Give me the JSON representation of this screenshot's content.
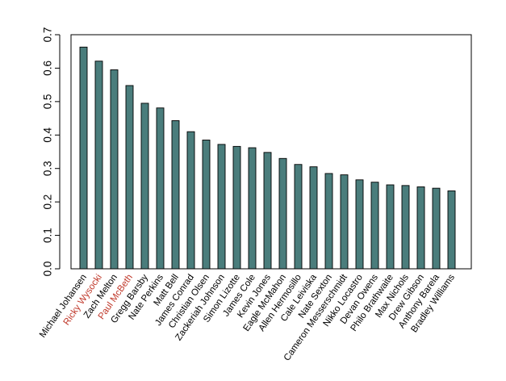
{
  "chart_data": {
    "type": "bar",
    "title": "",
    "xlabel": "",
    "ylabel": "",
    "ylim": [
      0,
      0.7
    ],
    "yticks": [
      "0.0",
      "0.1",
      "0.2",
      "0.3",
      "0.4",
      "0.5",
      "0.6",
      "0.7"
    ],
    "grid": false,
    "legend": "none",
    "bar_color": "#4a7d7c",
    "highlight_label_color": "#c0392b",
    "default_label_color": "#000000",
    "categories": [
      "Michael Johansen",
      "Ricky Wysocki",
      "Zach Melton",
      "Paul McBeth",
      "Gregg Barsby",
      "Nate Perkins",
      "Matt Bell",
      "James Conrad",
      "Christian Olsen",
      "Zackeriah Johnson",
      "Simon Lizotte",
      "James Cole",
      "Kevin Jones",
      "Eagle McMahon",
      "Allen Hermosillo",
      "Cale Leiviska",
      "Nate Sexton",
      "Cameron Messerschmidt",
      "Nikko Locastro",
      "Devan Owens",
      "Philo Brathwaite",
      "Max Nichols",
      "Drew Gibson",
      "Anthony Barela",
      "Bradley Williams"
    ],
    "highlighted": [
      "Ricky Wysocki",
      "Paul McBeth"
    ],
    "values": [
      0.663,
      0.621,
      0.595,
      0.548,
      0.495,
      0.481,
      0.443,
      0.41,
      0.385,
      0.372,
      0.366,
      0.362,
      0.348,
      0.33,
      0.312,
      0.305,
      0.285,
      0.281,
      0.266,
      0.259,
      0.251,
      0.249,
      0.245,
      0.241,
      0.233
    ]
  }
}
